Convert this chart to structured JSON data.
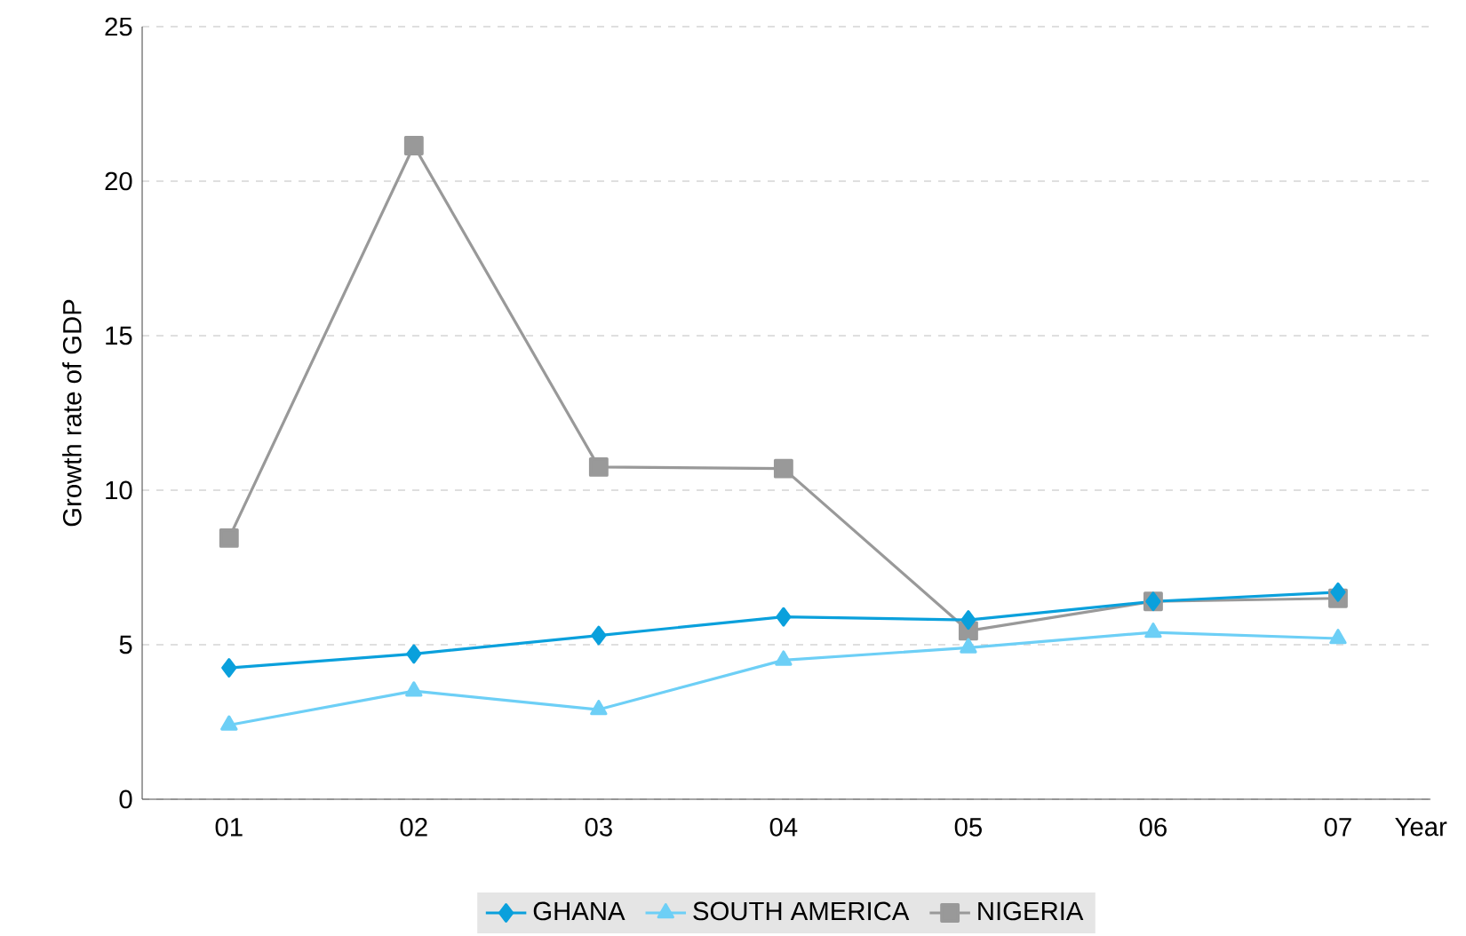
{
  "chart_data": {
    "type": "line",
    "xlabel": "Year",
    "ylabel": "Growth rate of GDP",
    "categories": [
      "01",
      "02",
      "03",
      "04",
      "05",
      "06",
      "07"
    ],
    "series": [
      {
        "name": "GHANA",
        "color": "#0aa0dc",
        "marker": "diamond",
        "values": [
          4.25,
          4.7,
          5.3,
          5.9,
          5.8,
          6.4,
          6.7
        ]
      },
      {
        "name": "SOUTH  AMERICA",
        "color": "#6dcff6",
        "marker": "triangle",
        "values": [
          2.4,
          3.5,
          2.9,
          4.5,
          4.9,
          5.4,
          5.2
        ]
      },
      {
        "name": "NIGERIA",
        "color": "#999999",
        "marker": "square",
        "values": [
          8.45,
          21.15,
          10.75,
          10.7,
          5.45,
          6.4,
          6.5
        ]
      }
    ],
    "ylim": [
      0,
      25
    ],
    "yticks": [
      0,
      5,
      10,
      15,
      20,
      25
    ],
    "grid": "y",
    "legend": "bottom",
    "line_style": "solid"
  }
}
